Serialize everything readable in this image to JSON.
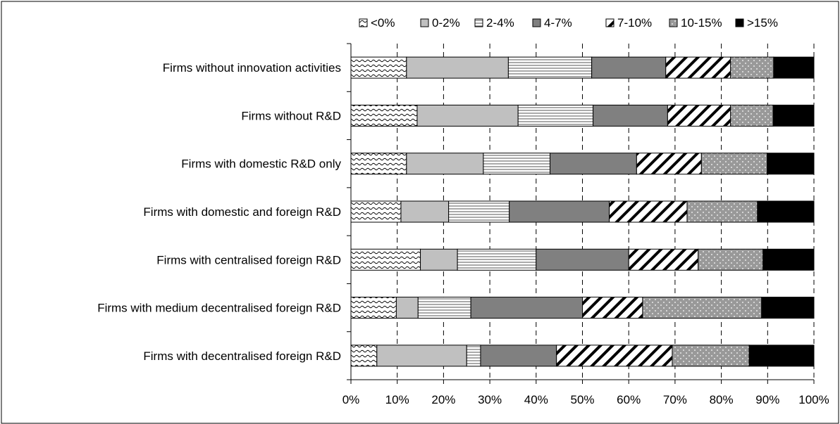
{
  "chart_data": {
    "type": "bar",
    "orientation": "horizontal",
    "stacked": true,
    "percent_stacked": true,
    "title": "",
    "xlabel": "",
    "ylabel": "",
    "xlim": [
      0,
      100
    ],
    "x_ticks": [
      "0%",
      "10%",
      "20%",
      "30%",
      "40%",
      "50%",
      "60%",
      "70%",
      "80%",
      "90%",
      "100%"
    ],
    "grid": "vertical dashed",
    "legend_position": "top",
    "categories": [
      "Firms without innovation activities",
      "Firms without R&D",
      "Firms with domestic R&D only",
      "Firms with domestic and foreign R&D",
      "Firms with centralised foreign R&D",
      "Firms with medium decentralised foreign R&D",
      "Firms with decentralised foreign R&D"
    ],
    "series": [
      {
        "name": "<0%",
        "pattern": "wave",
        "color": "#ffffff",
        "values": [
          12,
          14.3,
          12,
          10.8,
          15,
          9.8,
          5.6
        ]
      },
      {
        "name": "0-2%",
        "pattern": "solid-light",
        "color": "#c0c0c0",
        "values": [
          22,
          21.8,
          16.6,
          10.3,
          8,
          4.7,
          19.4
        ]
      },
      {
        "name": "2-4%",
        "pattern": "hlines",
        "color": "#ffffff",
        "values": [
          18,
          16.2,
          14.4,
          13.1,
          17,
          11.4,
          3
        ]
      },
      {
        "name": "4-7%",
        "pattern": "solid-mid",
        "color": "#808080",
        "values": [
          16,
          16.1,
          18.7,
          21.6,
          20,
          24.1,
          16.4
        ]
      },
      {
        "name": "7-10%",
        "pattern": "diag",
        "color": "#ffffff",
        "values": [
          14,
          13.6,
          14,
          16.8,
          15,
          13,
          25
        ]
      },
      {
        "name": "10-15%",
        "pattern": "dots",
        "color": "#999999",
        "values": [
          9.3,
          9.2,
          14.2,
          15.2,
          14,
          25.7,
          16.6
        ]
      },
      {
        "name": ">15%",
        "pattern": "solid-dark",
        "color": "#000000",
        "values": [
          8.7,
          8.8,
          10.1,
          12.2,
          11,
          11.3,
          14
        ]
      }
    ]
  }
}
